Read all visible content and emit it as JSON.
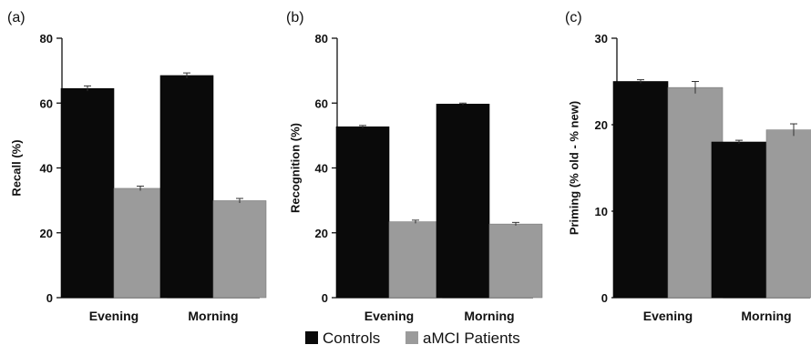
{
  "chart_data": [
    {
      "type": "bar",
      "panel_label": "(a)",
      "categories": [
        "Evening",
        "Morning"
      ],
      "series": [
        {
          "name": "Controls",
          "values": [
            64.5,
            68.5
          ],
          "errors": [
            0.8,
            0.8
          ]
        },
        {
          "name": "aMCI Patients",
          "values": [
            33.7,
            29.9
          ],
          "errors": [
            0.7,
            0.7
          ]
        }
      ],
      "ylabel": "Recall (%)",
      "ylim": [
        0,
        80
      ],
      "yticks": [
        0,
        20,
        40,
        60,
        80
      ]
    },
    {
      "type": "bar",
      "panel_label": "(b)",
      "categories": [
        "Evening",
        "Morning"
      ],
      "series": [
        {
          "name": "Controls",
          "values": [
            52.7,
            59.7
          ],
          "errors": [
            0.4,
            0.3
          ]
        },
        {
          "name": "aMCI Patients",
          "values": [
            23.4,
            22.7
          ],
          "errors": [
            0.5,
            0.5
          ]
        }
      ],
      "ylabel": "Recognition (%)",
      "ylim": [
        0,
        80
      ],
      "yticks": [
        0,
        20,
        40,
        60,
        80
      ]
    },
    {
      "type": "bar",
      "panel_label": "(c)",
      "categories": [
        "Evening",
        "Morning"
      ],
      "series": [
        {
          "name": "Controls",
          "values": [
            25.0,
            18.0
          ],
          "errors": [
            0.2,
            0.2
          ]
        },
        {
          "name": "aMCI Patients",
          "values": [
            24.3,
            19.4
          ],
          "errors": [
            0.7,
            0.7
          ]
        }
      ],
      "ylabel": "Priming (% old - % new)",
      "ylim": [
        0,
        30
      ],
      "yticks": [
        0,
        10,
        20,
        30
      ]
    }
  ],
  "legend": {
    "items": [
      {
        "label": "Controls",
        "color": "#0a0a0a"
      },
      {
        "label": "aMCI Patients",
        "color": "#9b9b9b"
      }
    ],
    "placement": "bottom-center"
  },
  "colors": {
    "controls": "#0a0a0a",
    "patients": "#9b9b9b",
    "axis": "#111111"
  }
}
